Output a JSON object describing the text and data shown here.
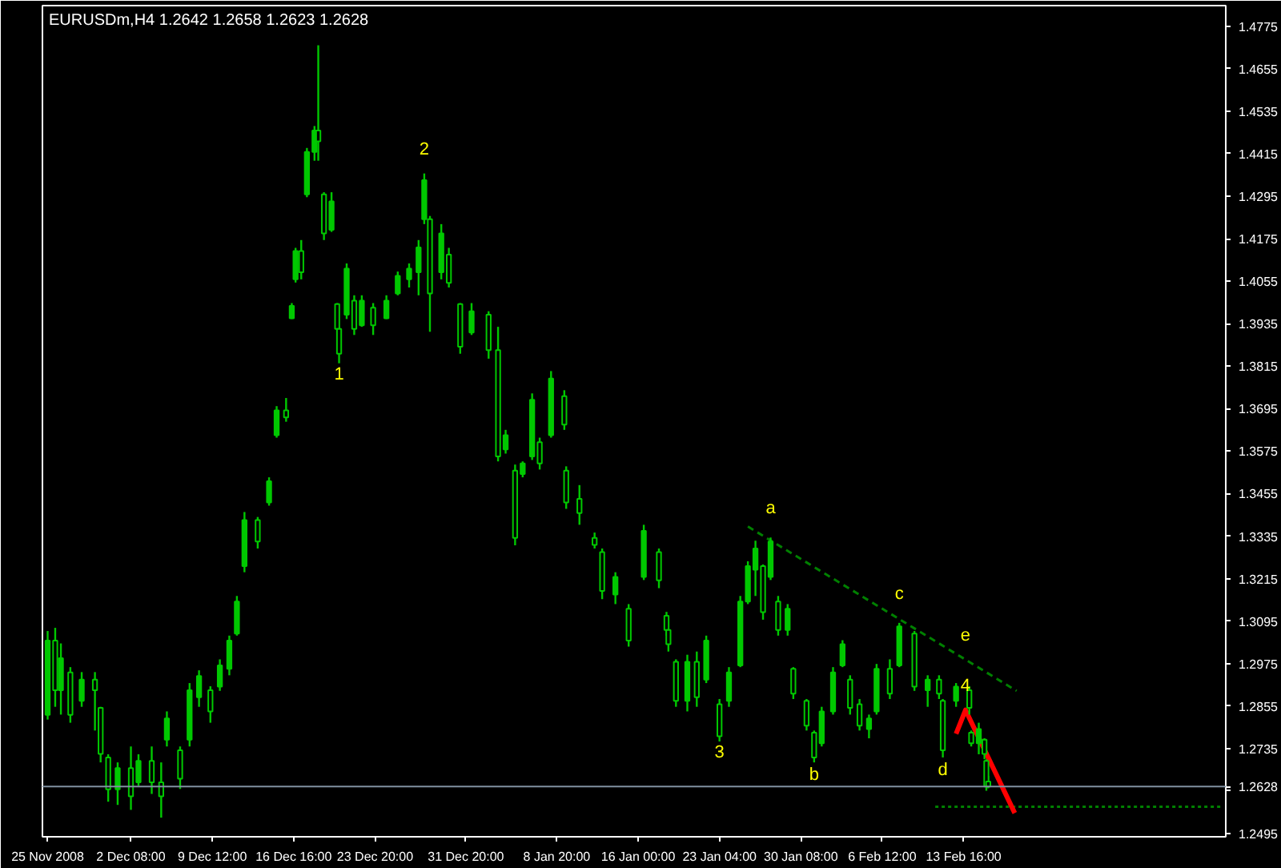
{
  "chart_data": {
    "type": "candlestick",
    "title": "EURUSDm,H4  1.2642 1.2658 1.2623 1.2628",
    "color": "#00c800",
    "x": [
      "2008-11-25T00:00",
      "2008-11-25T16:00",
      "2008-11-26T04:00",
      "2008-11-27T00:00",
      "2008-11-28T00:00",
      "2008-11-29T04:00",
      "2008-11-29T16:00",
      "2008-11-30T08:00",
      "2008-12-01T04:00",
      "2008-12-02T08:00",
      "2008-12-03T00:00",
      "2008-12-04T04:00",
      "2008-12-05T00:00",
      "2008-12-05T12:00",
      "2008-12-06T16:00",
      "2008-12-07T12:00",
      "2008-12-08T08:00",
      "2008-12-09T08:00",
      "2008-12-10T04:00",
      "2008-12-11T00:00",
      "2008-12-11T16:00",
      "2008-12-12T08:00",
      "2008-12-13T12:00",
      "2008-12-14T12:00",
      "2008-12-15T04:00",
      "2008-12-16T00:00",
      "2008-12-16T12:00",
      "2008-12-16T20:00",
      "2008-12-17T08:00",
      "2008-12-17T20:00",
      "2008-12-18T12:00",
      "2008-12-18T20:00",
      "2008-12-19T08:00",
      "2008-12-20T00:00",
      "2008-12-20T12:00",
      "2008-12-20T16:00",
      "2008-12-21T08:00",
      "2008-12-22T00:00",
      "2008-12-22T16:00",
      "2008-12-23T16:00",
      "2008-12-24T20:00",
      "2008-12-25T20:00",
      "2008-12-26T20:00",
      "2008-12-27T16:00",
      "2008-12-28T04:00",
      "2008-12-28T16:00",
      "2008-12-29T16:00",
      "2008-12-30T08:00",
      "2008-12-31T08:00",
      "2009-01-01T08:00",
      "2009-01-02T20:00",
      "2009-01-03T16:00",
      "2009-01-04T08:00",
      "2009-01-05T04:00",
      "2009-01-05T20:00",
      "2009-01-06T16:00",
      "2009-01-07T08:00",
      "2009-01-08T08:00",
      "2009-01-09T12:00",
      "2009-01-09T16:00",
      "2009-01-10T20:00",
      "2009-01-12T04:00",
      "2009-01-12T20:00",
      "2009-01-14T00:00",
      "2009-01-15T04:00",
      "2009-01-16T12:00",
      "2009-01-17T20:00",
      "2009-01-18T12:00",
      "2009-01-18T16:00",
      "2009-01-19T08:00",
      "2009-01-20T08:00",
      "2009-01-21T04:00",
      "2009-01-22T00:00",
      "2009-01-23T04:00",
      "2009-01-24T00:00",
      "2009-01-25T00:00",
      "2009-01-25T16:00",
      "2009-01-26T08:00",
      "2009-01-27T00:00",
      "2009-01-27T16:00",
      "2009-01-28T08:00",
      "2009-01-29T04:00",
      "2009-01-29T16:00",
      "2009-01-30T20:00",
      "2009-01-31T12:00",
      "2009-02-01T04:00",
      "2009-02-02T04:00",
      "2009-02-03T00:00",
      "2009-02-03T16:00",
      "2009-02-04T12:00",
      "2009-02-05T08:00",
      "2009-02-06T00:00",
      "2009-02-07T04:00",
      "2009-02-08T00:00",
      "2009-02-09T08:00",
      "2009-02-10T12:00",
      "2009-02-11T12:00",
      "2009-02-11T20:00",
      "2009-02-13T00:00",
      "2009-02-14T04:00",
      "2009-02-14T08:00",
      "2009-02-15T00:00",
      "2009-02-15T12:00",
      "2009-02-15T16:00",
      "2009-02-15T20:00"
    ],
    "ohlc": [
      [
        1.283,
        1.3067,
        1.2817,
        1.304
      ],
      [
        1.304,
        1.3076,
        1.2853,
        1.29
      ],
      [
        1.29,
        1.3032,
        1.2831,
        1.299
      ],
      [
        1.295,
        1.2965,
        1.2808,
        1.283
      ],
      [
        1.287,
        1.2951,
        1.2853,
        1.293
      ],
      [
        1.293,
        1.2951,
        1.2786,
        1.29
      ],
      [
        1.285,
        1.2853,
        1.2696,
        1.272
      ],
      [
        1.271,
        1.2719,
        1.2585,
        1.262
      ],
      [
        1.262,
        1.2696,
        1.2576,
        1.268
      ],
      [
        1.268,
        1.2741,
        1.2562,
        1.26
      ],
      [
        1.264,
        1.2719,
        1.263,
        1.27
      ],
      [
        1.27,
        1.2741,
        1.2607,
        1.264
      ],
      [
        1.264,
        1.2696,
        1.254,
        1.26
      ],
      [
        1.276,
        1.284,
        1.2741,
        1.282
      ],
      [
        1.273,
        1.2741,
        1.2621,
        1.265
      ],
      [
        1.276,
        1.292,
        1.2741,
        1.29
      ],
      [
        1.288,
        1.2956,
        1.2853,
        1.294
      ],
      [
        1.29,
        1.2911,
        1.2808,
        1.284
      ],
      [
        1.291,
        1.2987,
        1.2898,
        1.297
      ],
      [
        1.296,
        1.3054,
        1.2942,
        1.304
      ],
      [
        1.306,
        1.3166,
        1.3054,
        1.315
      ],
      [
        1.325,
        1.3403,
        1.3233,
        1.338
      ],
      [
        1.338,
        1.3389,
        1.33,
        1.332
      ],
      [
        1.343,
        1.3501,
        1.3421,
        1.349
      ],
      [
        1.362,
        1.3702,
        1.3613,
        1.369
      ],
      [
        1.369,
        1.3725,
        1.3658,
        1.367
      ],
      [
        1.395,
        1.3993,
        1.3948,
        1.3985
      ],
      [
        1.406,
        1.4149,
        1.4051,
        1.414
      ],
      [
        1.414,
        1.4171,
        1.406,
        1.408
      ],
      [
        1.43,
        1.4431,
        1.4292,
        1.442
      ],
      [
        1.442,
        1.4493,
        1.4395,
        1.448
      ],
      [
        1.448,
        1.4721,
        1.4395,
        1.445
      ],
      [
        1.43,
        1.4306,
        1.4171,
        1.419
      ],
      [
        1.42,
        1.4306,
        1.4194,
        1.428
      ],
      [
        1.399,
        1.3993,
        1.3903,
        1.392
      ],
      [
        1.392,
        1.3926,
        1.3823,
        1.385
      ],
      [
        1.396,
        1.4105,
        1.3948,
        1.409
      ],
      [
        1.4,
        1.4015,
        1.3903,
        1.392
      ],
      [
        1.393,
        1.4015,
        1.3926,
        1.4
      ],
      [
        1.398,
        1.3993,
        1.3903,
        1.393
      ],
      [
        1.395,
        1.4015,
        1.3948,
        1.4
      ],
      [
        1.402,
        1.4082,
        1.4015,
        1.407
      ],
      [
        1.406,
        1.4105,
        1.4037,
        1.409
      ],
      [
        1.408,
        1.4171,
        1.4015,
        1.415
      ],
      [
        1.423,
        1.4359,
        1.4216,
        1.434
      ],
      [
        1.423,
        1.4239,
        1.3912,
        1.402
      ],
      [
        1.408,
        1.4216,
        1.406,
        1.419
      ],
      [
        1.413,
        1.4149,
        1.4037,
        1.405
      ],
      [
        1.399,
        1.3993,
        1.385,
        1.387
      ],
      [
        1.391,
        1.3993,
        1.3903,
        1.397
      ],
      [
        1.396,
        1.397,
        1.3836,
        1.386
      ],
      [
        1.386,
        1.3926,
        1.3546,
        1.356
      ],
      [
        1.358,
        1.3635,
        1.3568,
        1.362
      ],
      [
        1.352,
        1.3537,
        1.3309,
        1.333
      ],
      [
        1.351,
        1.3546,
        1.3501,
        1.354
      ],
      [
        1.356,
        1.3738,
        1.355,
        1.372
      ],
      [
        1.36,
        1.3613,
        1.3523,
        1.354
      ],
      [
        1.362,
        1.3801,
        1.3613,
        1.378
      ],
      [
        1.373,
        1.3747,
        1.3635,
        1.365
      ],
      [
        1.352,
        1.3532,
        1.3412,
        1.343
      ],
      [
        1.344,
        1.3479,
        1.3367,
        1.34
      ],
      [
        1.333,
        1.3345,
        1.33,
        1.331
      ],
      [
        1.329,
        1.33,
        1.3157,
        1.318
      ],
      [
        1.317,
        1.3233,
        1.3143,
        1.322
      ],
      [
        1.313,
        1.3143,
        1.3023,
        1.304
      ],
      [
        1.322,
        1.3367,
        1.3211,
        1.335
      ],
      [
        1.329,
        1.33,
        1.3188,
        1.321
      ],
      [
        1.311,
        1.3121,
        1.3054,
        1.307
      ],
      [
        1.307,
        1.3099,
        1.3009,
        1.303
      ],
      [
        1.298,
        1.2987,
        1.2853,
        1.287
      ],
      [
        1.287,
        1.3,
        1.284,
        1.298
      ],
      [
        1.298,
        1.3009,
        1.2853,
        1.288
      ],
      [
        1.293,
        1.3054,
        1.292,
        1.304
      ],
      [
        1.286,
        1.2875,
        1.2755,
        1.277
      ],
      [
        1.287,
        1.2965,
        1.2853,
        1.295
      ],
      [
        1.297,
        1.3166,
        1.2965,
        1.315
      ],
      [
        1.315,
        1.3264,
        1.3143,
        1.325
      ],
      [
        1.324,
        1.3322,
        1.3166,
        1.33
      ],
      [
        1.325,
        1.3255,
        1.3099,
        1.312
      ],
      [
        1.322,
        1.3331,
        1.3211,
        1.332
      ],
      [
        1.315,
        1.3166,
        1.3054,
        1.307
      ],
      [
        1.307,
        1.3143,
        1.3054,
        1.313
      ],
      [
        1.296,
        1.2965,
        1.2875,
        1.289
      ],
      [
        1.287,
        1.2875,
        1.2786,
        1.28
      ],
      [
        1.278,
        1.2786,
        1.2696,
        1.271
      ],
      [
        1.275,
        1.2853,
        1.2741,
        1.284
      ],
      [
        1.284,
        1.2965,
        1.2831,
        1.295
      ],
      [
        1.297,
        1.3041,
        1.2965,
        1.303
      ],
      [
        1.293,
        1.2942,
        1.2831,
        1.285
      ],
      [
        1.286,
        1.2875,
        1.2786,
        1.28
      ],
      [
        1.279,
        1.2831,
        1.2764,
        1.282
      ],
      [
        1.284,
        1.2974,
        1.2831,
        1.296
      ],
      [
        1.296,
        1.2987,
        1.2875,
        1.289
      ],
      [
        1.297,
        1.309,
        1.2965,
        1.308
      ],
      [
        1.306,
        1.3067,
        1.2898,
        1.291
      ],
      [
        1.29,
        1.2942,
        1.2853,
        1.293
      ],
      [
        1.293,
        1.2942,
        1.2875,
        1.289
      ],
      [
        1.287,
        1.2875,
        1.271,
        1.273
      ],
      [
        1.287,
        1.292,
        1.2853,
        1.291
      ],
      [
        1.29,
        1.2911,
        1.2831,
        1.285
      ],
      [
        1.278,
        1.2786,
        1.2741,
        1.275
      ],
      [
        1.275,
        1.2808,
        1.2719,
        1.279
      ],
      [
        1.276,
        1.2764,
        1.2705,
        1.272
      ],
      [
        1.27,
        1.2705,
        1.2616,
        1.2628
      ],
      [
        1.2642,
        1.2658,
        1.2623,
        1.2628
      ]
    ],
    "series": [
      {
        "type": "line",
        "color": "#008000",
        "line_style": "dashed",
        "x": [
          "2009-01-25T16:00",
          "2009-02-18T08:00"
        ],
        "values": [
          1.3362,
          1.2898
        ]
      },
      {
        "type": "line",
        "color": "#008000",
        "line_style": "dotted",
        "x": [
          "2009-02-11T04:00",
          "2009-03-08T12:00"
        ],
        "values": [
          1.2571,
          1.2571
        ]
      },
      {
        "type": "line",
        "color": "#ff0000",
        "line_style": "solid",
        "x": [
          "2009-02-13T00:00",
          "2009-02-13T20:00",
          "2009-02-18T04:00"
        ],
        "values": [
          1.2777,
          1.2844,
          1.2553
        ]
      }
    ],
    "annotations": [
      {
        "text": "1",
        "x": "2008-12-20T16:00",
        "y": 1.3823
      },
      {
        "text": "2",
        "x": "2008-12-28T04:00",
        "y": 1.4359
      },
      {
        "text": "3",
        "x": "2009-01-23T04:00",
        "y": 1.2755
      },
      {
        "text": "4",
        "x": "2009-02-13T20:00",
        "y": 1.2844
      },
      {
        "text": "a",
        "x": "2009-01-27T16:00",
        "y": 1.3331
      },
      {
        "text": "b",
        "x": "2009-01-31T12:00",
        "y": 1.2696
      },
      {
        "text": "c",
        "x": "2009-02-08T00:00",
        "y": 1.309
      },
      {
        "text": "d",
        "x": "2009-02-11T20:00",
        "y": 1.271
      },
      {
        "text": "e",
        "x": "2009-02-13T20:00",
        "y": 1.2986
      }
    ],
    "ref_lines": [
      {
        "axis": "y",
        "value": 1.2628,
        "label": "1.2628",
        "color": "#8090a0"
      }
    ],
    "xlim": [
      "2008-11-24T13:00",
      "2009-03-08T18:00"
    ],
    "ylim": [
      1.2486,
      1.4833
    ],
    "xticks": [
      {
        "value": "2008-11-25T00:00",
        "label": "25 Nov 2008"
      },
      {
        "value": "2008-12-02T08:00",
        "label": "2 Dec 08:00"
      },
      {
        "value": "2008-12-09T12:00",
        "label": "9 Dec 12:00"
      },
      {
        "value": "2008-12-16T16:00",
        "label": "16 Dec 16:00"
      },
      {
        "value": "2008-12-23T20:00",
        "label": "23 Dec 20:00"
      },
      {
        "value": "2008-12-31T20:00",
        "label": "31 Dec 20:00"
      },
      {
        "value": "2009-01-08T20:00",
        "label": "8 Jan 20:00"
      },
      {
        "value": "2009-01-16T00:00",
        "label": "16 Jan 00:00"
      },
      {
        "value": "2009-01-23T04:00",
        "label": "23 Jan 04:00"
      },
      {
        "value": "2009-01-30T08:00",
        "label": "30 Jan 08:00"
      },
      {
        "value": "2009-02-06T12:00",
        "label": "6 Feb 12:00"
      },
      {
        "value": "2009-02-13T16:00",
        "label": "13 Feb 16:00"
      }
    ],
    "yticks": [
      1.4775,
      1.4655,
      1.4535,
      1.4415,
      1.4295,
      1.4175,
      1.4055,
      1.3935,
      1.3815,
      1.3695,
      1.3575,
      1.3455,
      1.3335,
      1.3215,
      1.3095,
      1.2975,
      1.2855,
      1.2735,
      {
        "value": 1.2615,
        "label": null
      },
      1.2495
    ],
    "grid": false
  }
}
